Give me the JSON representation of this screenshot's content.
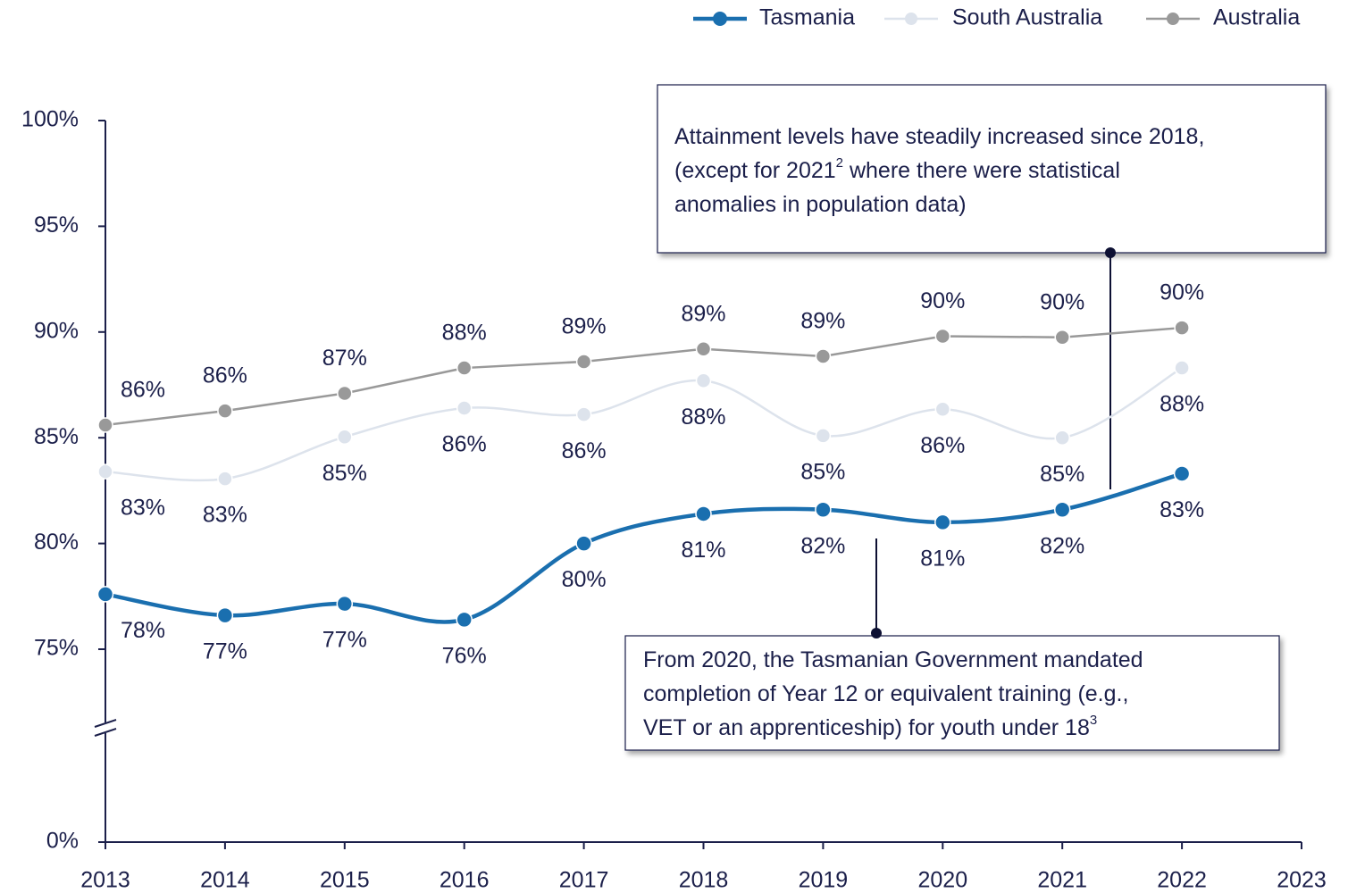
{
  "chart_data": {
    "type": "line",
    "xlim": [
      2013,
      2023
    ],
    "xticks": [
      2013,
      2014,
      2015,
      2016,
      2017,
      2018,
      2019,
      2020,
      2021,
      2022,
      2023
    ],
    "ylim": [
      0,
      100
    ],
    "yticks": [
      {
        "value": 0,
        "label": "0%"
      },
      {
        "value": 75,
        "label": "75%"
      },
      {
        "value": 80,
        "label": "80%"
      },
      {
        "value": 85,
        "label": "85%"
      },
      {
        "value": 90,
        "label": "90%"
      },
      {
        "value": 95,
        "label": "95%"
      },
      {
        "value": 100,
        "label": "100%"
      }
    ],
    "axis_break": true,
    "grid": false,
    "legend": "top-right",
    "x": [
      2013,
      2014,
      2015,
      2016,
      2017,
      2018,
      2019,
      2020,
      2021,
      2022
    ],
    "series": [
      {
        "name": "Tasmania",
        "color": "#1a6faf",
        "smooth": true,
        "label_position": "below",
        "values": [
          77.6,
          76.6,
          77.15,
          76.4,
          80.0,
          81.4,
          81.6,
          81.0,
          81.6,
          83.3
        ],
        "value_labels": [
          "78%",
          "77%",
          "77%",
          "76%",
          "80%",
          "81%",
          "82%",
          "81%",
          "82%",
          "83%"
        ]
      },
      {
        "name": "South Australia",
        "color": "#dde3ec",
        "smooth": true,
        "label_position": "below",
        "values": [
          83.4,
          83.06,
          85.04,
          86.4,
          86.1,
          87.7,
          85.1,
          86.35,
          85.0,
          88.3
        ],
        "value_labels": [
          "83%",
          "83%",
          "85%",
          "86%",
          "86%",
          "88%",
          "85%",
          "86%",
          "85%",
          "88%"
        ]
      },
      {
        "name": "Australia",
        "color": "#999999",
        "smooth": false,
        "label_position": "above",
        "values": [
          85.6,
          86.27,
          87.1,
          88.3,
          88.6,
          89.2,
          88.85,
          89.8,
          89.75,
          90.2
        ],
        "value_labels": [
          "86%",
          "86%",
          "87%",
          "88%",
          "89%",
          "89%",
          "89%",
          "90%",
          "90%",
          "90%"
        ]
      }
    ],
    "annotations": [
      {
        "lines": [
          [
            "Attainment levels have steadily increased since 2018,"
          ],
          [
            "(except for 2021",
            "2",
            " where there were statistical"
          ],
          [
            "anomalies in population data)"
          ]
        ]
      },
      {
        "lines": [
          [
            "From 2020, the Tasmanian Government mandated"
          ],
          [
            "completion of Year 12 or equivalent training (e.g.,"
          ],
          [
            "VET or an apprenticeship) for youth under 18",
            "3"
          ]
        ]
      }
    ]
  }
}
